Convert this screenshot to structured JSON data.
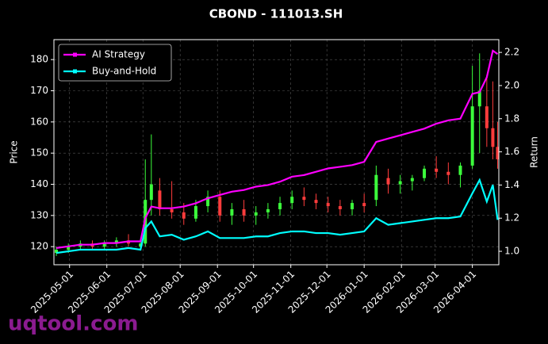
{
  "chart_data": {
    "type": "candlestick",
    "title": "CBOND - 111013.SH",
    "y_label": "Price",
    "y2_label": "Return",
    "watermark": "uqtool.com",
    "x": [
      "2025-04-20",
      "2025-04-30",
      "2025-05-10",
      "2025-05-20",
      "2025-05-30",
      "2025-06-09",
      "2025-06-19",
      "2025-06-29",
      "2025-07-03",
      "2025-07-08",
      "2025-07-15",
      "2025-07-25",
      "2025-08-04",
      "2025-08-14",
      "2025-08-24",
      "2025-09-03",
      "2025-09-13",
      "2025-09-23",
      "2025-10-03",
      "2025-10-13",
      "2025-10-23",
      "2025-11-02",
      "2025-11-12",
      "2025-11-22",
      "2025-12-02",
      "2025-12-12",
      "2025-12-22",
      "2026-01-01",
      "2026-01-11",
      "2026-01-21",
      "2026-01-31",
      "2026-02-10",
      "2026-02-20",
      "2026-03-02",
      "2026-03-12",
      "2026-03-22",
      "2026-04-01",
      "2026-04-07",
      "2026-04-13",
      "2026-04-18",
      "2026-04-22"
    ],
    "open": [
      118,
      119,
      120,
      121,
      120,
      121,
      122,
      120,
      121,
      135,
      138,
      132,
      131,
      129,
      133,
      136,
      130,
      132,
      130,
      131,
      132,
      134,
      136,
      135,
      134,
      133,
      132,
      134,
      135,
      142,
      140,
      141,
      142,
      145,
      144,
      143,
      146,
      165,
      165,
      158,
      152
    ],
    "high": [
      120,
      121,
      122,
      122,
      122,
      123,
      124,
      122,
      148,
      156,
      142,
      141,
      134,
      135,
      138,
      138,
      134,
      135,
      133,
      134,
      136,
      138,
      139,
      137,
      136,
      135,
      135,
      137,
      146,
      145,
      143,
      143,
      146,
      149,
      147,
      147,
      178,
      182,
      175,
      173,
      160
    ],
    "low": [
      117,
      118,
      119,
      119,
      119,
      120,
      120,
      119,
      120,
      130,
      130,
      129,
      127,
      128,
      131,
      128,
      127,
      128,
      127,
      129,
      130,
      132,
      133,
      132,
      131,
      130,
      130,
      131,
      133,
      137,
      137,
      138,
      141,
      142,
      140,
      139,
      145,
      150,
      152,
      148,
      145
    ],
    "close": [
      119,
      120,
      121,
      120,
      121,
      122,
      121,
      121,
      135,
      140,
      132,
      131,
      129,
      133,
      136,
      130,
      132,
      130,
      131,
      132,
      134,
      136,
      135,
      134,
      133,
      132,
      134,
      133,
      143,
      140,
      141,
      142,
      145,
      144,
      143,
      146,
      165,
      170,
      158,
      152,
      148
    ],
    "up_color": "#3cff3c",
    "down_color": "#ff3c3c",
    "series": [
      {
        "name": "AI Strategy",
        "color": "#ff00ff",
        "axis": "y2",
        "values": [
          1.02,
          1.03,
          1.04,
          1.04,
          1.05,
          1.05,
          1.06,
          1.06,
          1.2,
          1.27,
          1.26,
          1.26,
          1.27,
          1.29,
          1.32,
          1.34,
          1.36,
          1.37,
          1.39,
          1.4,
          1.42,
          1.45,
          1.46,
          1.48,
          1.5,
          1.51,
          1.52,
          1.54,
          1.66,
          1.68,
          1.7,
          1.72,
          1.74,
          1.77,
          1.79,
          1.8,
          1.95,
          1.96,
          2.05,
          2.21,
          2.19
        ]
      },
      {
        "name": "Buy-and-Hold",
        "color": "#00ffff",
        "axis": "y2",
        "values": [
          0.99,
          1.0,
          1.01,
          1.01,
          1.01,
          1.01,
          1.02,
          1.01,
          1.14,
          1.18,
          1.09,
          1.1,
          1.07,
          1.09,
          1.12,
          1.08,
          1.08,
          1.08,
          1.09,
          1.09,
          1.11,
          1.12,
          1.12,
          1.11,
          1.11,
          1.1,
          1.11,
          1.12,
          1.2,
          1.16,
          1.17,
          1.18,
          1.19,
          1.2,
          1.2,
          1.21,
          1.35,
          1.43,
          1.3,
          1.4,
          1.19
        ]
      }
    ],
    "xlim": [
      "2025-04-18",
      "2026-04-23"
    ],
    "xticks": [
      "2025-05-01",
      "2025-06-01",
      "2025-07-01",
      "2025-08-01",
      "2025-09-01",
      "2025-10-01",
      "2025-11-01",
      "2025-12-01",
      "2026-01-01",
      "2026-02-01",
      "2026-03-01",
      "2026-04-01"
    ],
    "ylim": [
      114.2,
      186.4
    ],
    "yticks": [
      120,
      130,
      140,
      150,
      160,
      170,
      180
    ],
    "y2lim": [
      0.919,
      2.277
    ],
    "y2ticks": [
      {
        "value": 1,
        "label": "1.0"
      },
      1.2,
      1.4,
      1.6,
      1.8,
      {
        "value": 2,
        "label": "2.0"
      },
      2.2
    ],
    "grid": true,
    "legend": "upper left"
  }
}
